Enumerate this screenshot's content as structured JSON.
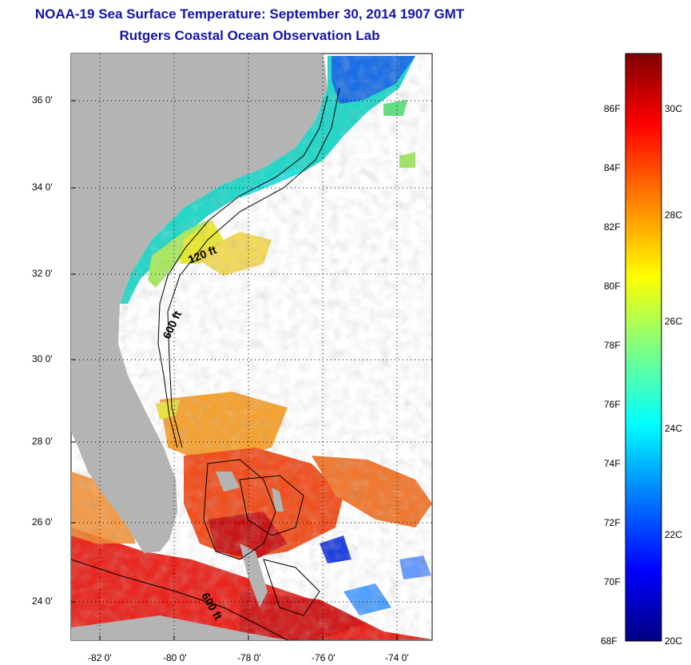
{
  "title": "NOAA-19 Sea Surface Temperature:  September 30, 2014 1907 GMT",
  "subtitle": "Rutgers Coastal Ocean Observation Lab",
  "map": {
    "lon_ticks": [
      "-82 0'",
      "-80 0'",
      "-78 0'",
      "-76 0'",
      "-74 0'"
    ],
    "lat_ticks": [
      "36 0'",
      "34 0'",
      "32 0'",
      "30 0'",
      "28 0'",
      "26 0'",
      "24 0'"
    ],
    "contours": [
      {
        "label": "120 ft"
      },
      {
        "label": "600 ft"
      },
      {
        "label": "600 ft"
      }
    ],
    "land_color": "#b4b4b4",
    "cloud_color": "#ffffff"
  },
  "colorbar": {
    "fahrenheit": [
      "86F",
      "84F",
      "82F",
      "80F",
      "78F",
      "76F",
      "74F",
      "72F",
      "70F",
      "68F"
    ],
    "celsius": [
      "30C",
      "28C",
      "26C",
      "24C",
      "22C",
      "20C"
    ],
    "colors": [
      "#000080",
      "#0000ff",
      "#0080ff",
      "#00ffff",
      "#80ff80",
      "#ffff00",
      "#ff8000",
      "#ff0000",
      "#800000"
    ]
  }
}
